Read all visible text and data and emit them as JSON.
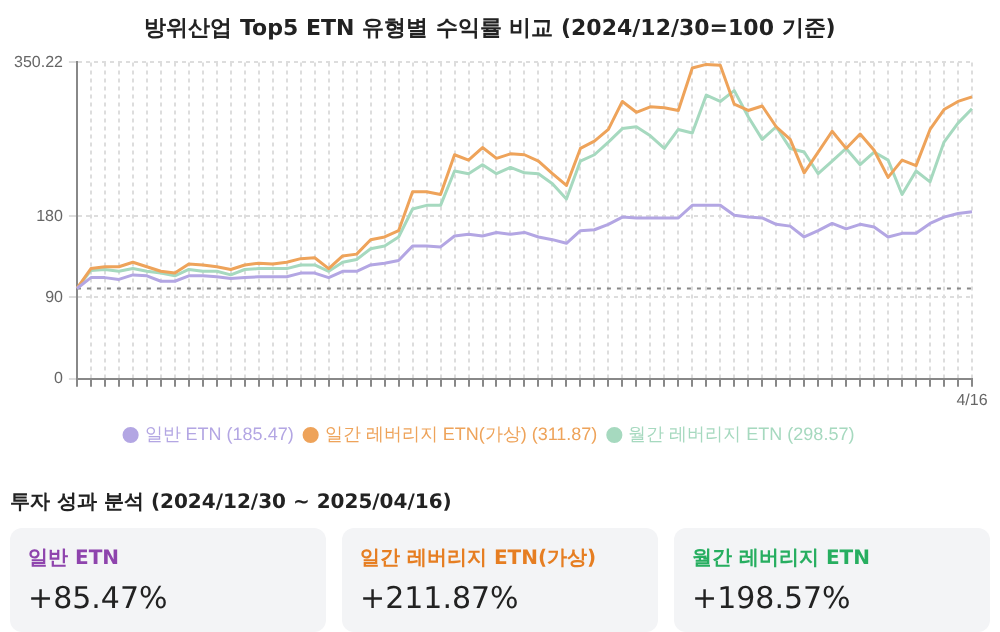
{
  "chart_data": [
    {
      "type": "line",
      "title": "방위산업 Top5 ETN 유형별 수익률 비교 (2024/12/30=100 기준)",
      "categories": [
        null,
        null,
        null,
        null,
        null,
        null,
        null,
        null,
        null,
        null,
        null,
        null,
        null,
        null,
        null,
        null,
        null,
        null,
        null,
        null,
        null,
        null,
        null,
        null,
        null,
        null,
        null,
        null,
        null,
        null,
        null,
        null,
        null,
        null,
        null,
        null,
        null,
        null,
        null,
        null,
        null,
        null,
        null,
        null,
        null,
        null,
        null,
        null,
        null,
        null,
        null,
        null,
        null,
        null,
        null,
        null,
        null,
        null,
        null,
        null,
        null,
        null,
        null,
        null,
        "4/16"
      ],
      "series": [
        {
          "name": "일반 ETN (185.47)",
          "color": "#b3a6e3",
          "values": [
            100,
            112,
            112,
            110,
            115,
            114,
            108,
            108,
            114,
            114,
            113,
            111,
            112,
            113,
            113,
            113,
            117,
            117,
            112,
            119,
            119,
            126,
            128,
            131,
            147,
            147,
            146,
            158,
            160,
            158,
            162,
            160,
            162,
            157,
            154,
            150,
            164,
            165,
            171,
            179,
            178,
            178,
            178,
            178,
            192,
            192,
            192,
            181,
            179,
            178,
            171,
            169,
            157,
            164,
            172,
            166,
            171,
            168,
            157,
            161,
            161,
            172,
            179,
            183,
            185
          ]
        },
        {
          "name": "일간 레버리지 ETN(가상) (311.87)",
          "color": "#eea35a",
          "values": [
            100,
            122,
            124,
            124,
            129,
            124,
            119,
            117,
            127,
            126,
            124,
            121,
            126,
            128,
            127,
            129,
            133,
            134,
            122,
            136,
            138,
            154,
            157,
            164,
            207,
            207,
            204,
            248,
            242,
            256,
            244,
            249,
            248,
            241,
            227,
            214,
            255,
            263,
            276,
            307,
            295,
            301,
            300,
            297,
            344,
            348,
            347,
            304,
            297,
            302,
            279,
            265,
            228,
            251,
            274,
            255,
            271,
            253,
            223,
            242,
            236,
            276,
            298,
            307,
            312
          ]
        },
        {
          "name": "월간 레버리지 ETN (298.57)",
          "color": "#a6d9bf",
          "values": [
            100,
            120,
            121,
            119,
            122,
            119,
            117,
            114,
            121,
            119,
            119,
            115,
            121,
            122,
            122,
            122,
            126,
            126,
            119,
            129,
            132,
            144,
            147,
            157,
            188,
            192,
            192,
            230,
            227,
            237,
            227,
            234,
            228,
            227,
            216,
            199,
            241,
            248,
            262,
            277,
            279,
            269,
            255,
            276,
            272,
            314,
            307,
            319,
            290,
            265,
            279,
            255,
            251,
            227,
            241,
            255,
            237,
            251,
            242,
            204,
            230,
            218,
            262,
            283,
            299
          ]
        }
      ],
      "ylim": [
        0,
        350.22
      ],
      "yticks": [
        0,
        90,
        180,
        350.22
      ],
      "ref_lines": [
        {
          "axis": "y",
          "value": 100,
          "color": "#888888",
          "line_style": "dotted"
        }
      ],
      "grid": true,
      "legend": "bottom",
      "marker": "none",
      "line_style": "solid"
    },
    {
      "type": "other",
      "title": "투자 성과 분석 (2024/12/30 ~ 2025/04/16)",
      "categories": [
        "일반 ETN",
        "일간 레버리지 ETN(가상)",
        "월간 레버리지 ETN"
      ],
      "value_labels": [
        "+85.47%",
        "+211.87%",
        "+198.57%"
      ]
    }
  ]
}
